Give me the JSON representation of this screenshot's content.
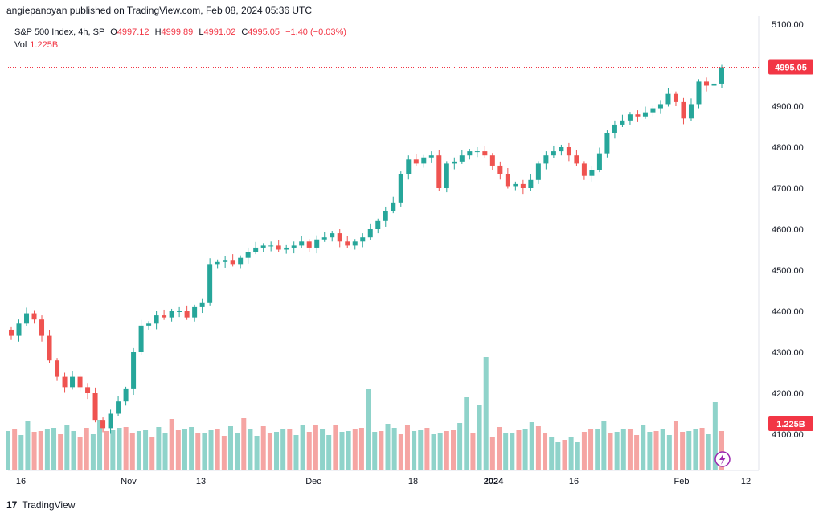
{
  "header": {
    "attribution": "angiepanoyan published on TradingView.com, Feb 08, 2024 05:36 UTC"
  },
  "legend": {
    "symbol": "S&P 500 Index, 4h, SP",
    "open_label": "O",
    "open_value": "4997.12",
    "high_label": "H",
    "high_value": "4999.89",
    "low_label": "L",
    "low_value": "4991.02",
    "close_label": "C",
    "close_value": "4995.05",
    "change": "−1.40 (−0.03%)",
    "vol_label": "Vol",
    "vol_value": "1.225B"
  },
  "price_tag": "4995.05",
  "volume_tag": "1.225B",
  "footer": {
    "brand": "TradingView",
    "logo_text": "17"
  },
  "colors": {
    "up": "#26a69a",
    "down": "#ef5350",
    "vol_up": "#8fd3ca",
    "vol_down": "#f5a5a3",
    "tag": "#f23645"
  },
  "chart_data": {
    "type": "candlestick",
    "title": "S&P 500 Index, 4h, SP",
    "price_axis": {
      "ticks": [
        4100,
        4200,
        4300,
        4400,
        4500,
        4600,
        4700,
        4800,
        4900,
        5000,
        5100
      ],
      "labels": [
        "4100.00",
        "4200.00",
        "4300.00",
        "4400.00",
        "4500.00",
        "4600.00",
        "4700.00",
        "4800.00",
        "4900.00",
        "5000.00",
        "5100.00"
      ]
    },
    "time_axis": {
      "labels": [
        "16",
        "Nov",
        "13",
        "Dec",
        "18",
        "2024",
        "16",
        "Feb",
        "12"
      ],
      "bold_index": 5
    },
    "last_price": 4995.05,
    "candles": [
      4340,
      4370,
      4395,
      4380,
      4340,
      4280,
      4240,
      4215,
      4240,
      4215,
      4200,
      4135,
      4115,
      4150,
      4180,
      4210,
      4300,
      4365,
      4370,
      4390,
      4385,
      4400,
      4400,
      4385,
      4410,
      4420,
      4515,
      4520,
      4525,
      4515,
      4530,
      4545,
      4555,
      4560,
      4560,
      4550,
      4555,
      4560,
      4570,
      4555,
      4575,
      4580,
      4590,
      4570,
      4560,
      4570,
      4580,
      4600,
      4620,
      4645,
      4665,
      4735,
      4770,
      4760,
      4775,
      4780,
      4700,
      4760,
      4765,
      4780,
      4790,
      4790,
      4780,
      4755,
      4735,
      4705,
      4710,
      4700,
      4720,
      4760,
      4780,
      4790,
      4800,
      4780,
      4760,
      4730,
      4745,
      4785,
      4835,
      4855,
      4865,
      4880,
      4875,
      4885,
      4895,
      4905,
      4930,
      4910,
      4870,
      4905,
      4960,
      4950,
      4955,
      4995
    ],
    "volume": {
      "bars": 110,
      "last": "1.225B"
    }
  }
}
